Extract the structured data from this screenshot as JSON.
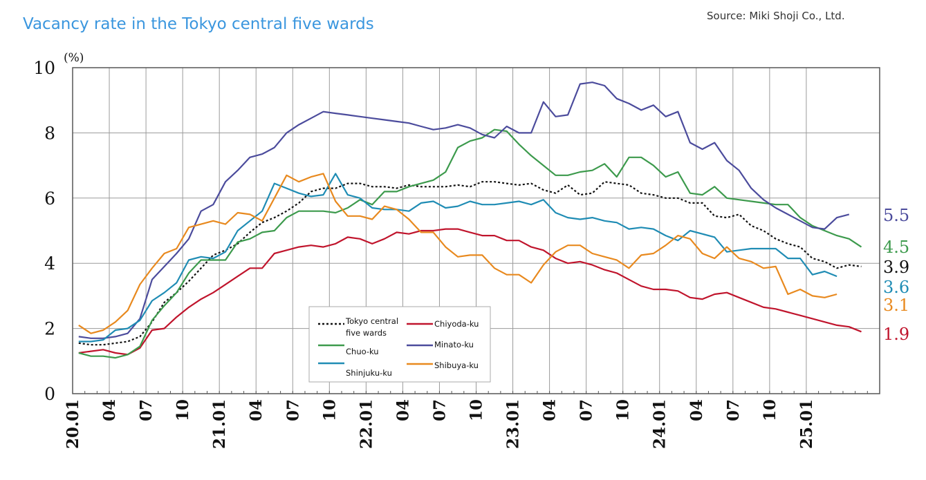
{
  "title": "Vacancy rate in the Tokyo central five wards",
  "source": "Source: Miki Shoji Co., Ltd.",
  "chart_data": {
    "type": "line",
    "title": "Vacancy rate in the Tokyo central five wards",
    "unit": "(%)",
    "ylim": [
      0,
      10
    ],
    "yticks": [
      "0",
      "2",
      "4",
      "6",
      "8",
      "10"
    ],
    "x_start": "2020-01",
    "x_tick_labels": [
      "20.01",
      "04",
      "07",
      "10",
      "21.01",
      "04",
      "07",
      "10",
      "22.01",
      "04",
      "07",
      "10",
      "23.01",
      "04",
      "07",
      "10",
      "24.01",
      "04",
      "07",
      "10",
      "25.01"
    ],
    "grid": true,
    "legend_position": "bottom-center",
    "series": [
      {
        "name": "Tokyo central five wards",
        "color": "#111111",
        "dashed": true,
        "end_label": "3.9",
        "values": [
          1.55,
          1.5,
          1.5,
          1.55,
          1.6,
          1.75,
          2.2,
          2.8,
          3.1,
          3.45,
          3.85,
          4.25,
          4.4,
          4.6,
          4.95,
          5.25,
          5.4,
          5.6,
          5.85,
          6.2,
          6.3,
          6.3,
          6.45,
          6.45,
          6.35,
          6.35,
          6.3,
          6.4,
          6.35,
          6.35,
          6.35,
          6.4,
          6.35,
          6.5,
          6.5,
          6.45,
          6.4,
          6.45,
          6.25,
          6.15,
          6.4,
          6.1,
          6.15,
          6.5,
          6.45,
          6.4,
          6.15,
          6.1,
          6.0,
          6.0,
          5.85,
          5.85,
          5.45,
          5.4,
          5.5,
          5.15,
          5.0,
          4.75,
          4.6,
          4.5,
          4.15,
          4.05,
          3.85,
          3.95,
          3.9
        ]
      },
      {
        "name": "Chiyoda-ku",
        "color": "#c0142c",
        "dashed": false,
        "end_label": "1.9",
        "values": [
          1.25,
          1.3,
          1.35,
          1.25,
          1.2,
          1.4,
          1.95,
          2.0,
          2.35,
          2.65,
          2.9,
          3.1,
          3.35,
          3.6,
          3.85,
          3.85,
          4.3,
          4.4,
          4.5,
          4.55,
          4.5,
          4.6,
          4.8,
          4.75,
          4.6,
          4.75,
          4.95,
          4.9,
          5.0,
          5.0,
          5.05,
          5.05,
          4.95,
          4.85,
          4.85,
          4.7,
          4.7,
          4.5,
          4.4,
          4.15,
          4.0,
          4.05,
          3.95,
          3.8,
          3.7,
          3.5,
          3.3,
          3.2,
          3.2,
          3.15,
          2.95,
          2.9,
          3.05,
          3.1,
          2.95,
          2.8,
          2.65,
          2.6,
          2.5,
          2.4,
          2.3,
          2.2,
          2.1,
          2.05,
          1.9
        ]
      },
      {
        "name": "Chuo-ku",
        "color": "#3c9a4c",
        "dashed": false,
        "end_label": "4.5",
        "values": [
          1.25,
          1.15,
          1.15,
          1.1,
          1.2,
          1.45,
          2.25,
          2.7,
          3.1,
          3.7,
          4.1,
          4.1,
          4.1,
          4.65,
          4.75,
          4.95,
          5.0,
          5.4,
          5.6,
          5.6,
          5.6,
          5.55,
          5.7,
          5.95,
          5.8,
          6.2,
          6.2,
          6.35,
          6.45,
          6.55,
          6.8,
          7.55,
          7.75,
          7.85,
          8.1,
          8.05,
          7.65,
          7.3,
          7.0,
          6.7,
          6.7,
          6.8,
          6.85,
          7.05,
          6.65,
          7.25,
          7.25,
          7.0,
          6.65,
          6.8,
          6.15,
          6.1,
          6.35,
          6.0,
          5.95,
          5.9,
          5.85,
          5.8,
          5.8,
          5.4,
          5.15,
          5.0,
          4.85,
          4.75,
          4.5
        ]
      },
      {
        "name": "Minato-ku",
        "color": "#4b4b9c",
        "dashed": false,
        "end_label": "5.5",
        "values": [
          1.75,
          1.7,
          1.7,
          1.75,
          1.85,
          2.3,
          3.5,
          3.9,
          4.3,
          4.75,
          5.6,
          5.8,
          6.5,
          6.85,
          7.25,
          7.35,
          7.55,
          8.0,
          8.25,
          8.45,
          8.65,
          8.6,
          8.55,
          8.5,
          8.45,
          8.4,
          8.35,
          8.3,
          8.2,
          8.1,
          8.15,
          8.25,
          8.15,
          7.95,
          7.85,
          8.2,
          8.0,
          8.0,
          8.95,
          8.5,
          8.55,
          9.5,
          9.55,
          9.45,
          9.05,
          8.9,
          8.7,
          8.85,
          8.5,
          8.65,
          7.7,
          7.5,
          7.7,
          7.15,
          6.85,
          6.3,
          5.95,
          5.7,
          5.5,
          5.3,
          5.1,
          5.05,
          5.4,
          5.5
        ]
      },
      {
        "name": "Shinjuku-ku",
        "color": "#1f8cb4",
        "dashed": false,
        "end_label": "3.6",
        "values": [
          1.6,
          1.6,
          1.65,
          1.95,
          2.0,
          2.25,
          2.85,
          3.1,
          3.4,
          4.1,
          4.2,
          4.15,
          4.35,
          5.0,
          5.3,
          5.6,
          6.45,
          6.3,
          6.15,
          6.05,
          6.1,
          6.75,
          6.1,
          6.0,
          5.7,
          5.65,
          5.65,
          5.6,
          5.85,
          5.9,
          5.7,
          5.75,
          5.9,
          5.8,
          5.8,
          5.85,
          5.9,
          5.8,
          5.95,
          5.55,
          5.4,
          5.35,
          5.4,
          5.3,
          5.25,
          5.05,
          5.1,
          5.05,
          4.85,
          4.7,
          5.0,
          4.9,
          4.8,
          4.35,
          4.4,
          4.45,
          4.45,
          4.45,
          4.15,
          4.15,
          3.65,
          3.75,
          3.6
        ]
      },
      {
        "name": "Shibuya-ku",
        "color": "#e8891e",
        "dashed": false,
        "end_label": "3.1",
        "values": [
          2.1,
          1.85,
          1.95,
          2.2,
          2.55,
          3.35,
          3.85,
          4.3,
          4.45,
          5.1,
          5.2,
          5.3,
          5.2,
          5.55,
          5.5,
          5.3,
          6.0,
          6.7,
          6.5,
          6.65,
          6.75,
          5.9,
          5.45,
          5.45,
          5.35,
          5.75,
          5.65,
          5.35,
          4.95,
          4.95,
          4.5,
          4.2,
          4.25,
          4.25,
          3.85,
          3.65,
          3.65,
          3.4,
          3.95,
          4.35,
          4.55,
          4.55,
          4.3,
          4.2,
          4.1,
          3.85,
          4.25,
          4.3,
          4.55,
          4.85,
          4.75,
          4.3,
          4.15,
          4.5,
          4.15,
          4.05,
          3.85,
          3.9,
          3.05,
          3.2,
          3.0,
          2.95,
          3.05
        ]
      }
    ],
    "legend": [
      {
        "name": "Tokyo central five wards",
        "color": "#111111",
        "dashed": true
      },
      {
        "name": "Chuo-ku",
        "color": "#3c9a4c",
        "dashed": false
      },
      {
        "name": "Shinjuku-ku",
        "color": "#1f8cb4",
        "dashed": false
      },
      {
        "name": "Chiyoda-ku",
        "color": "#c0142c",
        "dashed": false
      },
      {
        "name": "Minato-ku",
        "color": "#4b4b9c",
        "dashed": false
      },
      {
        "name": "Shibuya-ku",
        "color": "#e8891e",
        "dashed": false
      }
    ]
  }
}
